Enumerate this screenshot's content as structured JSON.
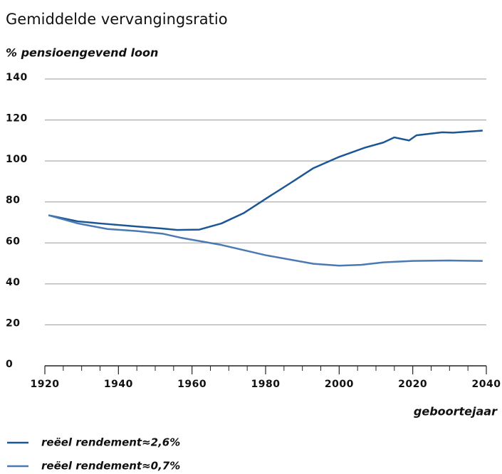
{
  "chart_data": {
    "type": "line",
    "title": "Gemiddelde vervangingsratio",
    "subtitle": "% pensioengevend loon",
    "x_label": "geboortejaar",
    "xlim": [
      1920,
      2040
    ],
    "xticks": [
      1920,
      1940,
      1960,
      1980,
      2000,
      2020,
      2040
    ],
    "ylim": [
      0,
      140
    ],
    "yticks": [
      0,
      20,
      40,
      60,
      80,
      100,
      120,
      140
    ],
    "grid": true,
    "series": [
      {
        "name": "reëel rendement≈2,6%",
        "color": "#1b5794",
        "x": [
          1921,
          1929,
          1935,
          1945,
          1952,
          1956,
          1962,
          1968,
          1974,
          1980,
          1987,
          1993,
          2000,
          2007,
          2012,
          2015,
          2019,
          2021,
          2028,
          2031,
          2039
        ],
        "values": [
          73.5,
          70.5,
          69.5,
          68,
          67,
          66.3,
          66.5,
          69.5,
          74.5,
          81.5,
          89.5,
          96.5,
          102,
          106.5,
          109,
          111.5,
          110,
          112.5,
          114,
          113.8,
          114.8
        ]
      },
      {
        "name": "reëel rendement≈0,7%",
        "color": "#4a79b3",
        "x": [
          1921,
          1929,
          1937,
          1945,
          1952,
          1957,
          1968,
          1980,
          1993,
          2000,
          2006,
          2012,
          2020,
          2030,
          2039
        ],
        "values": [
          73.5,
          69.5,
          66.8,
          65.8,
          64.5,
          62.5,
          59,
          54,
          49.8,
          48.9,
          49.3,
          50.5,
          51.2,
          51.4,
          51.2
        ]
      }
    ]
  }
}
